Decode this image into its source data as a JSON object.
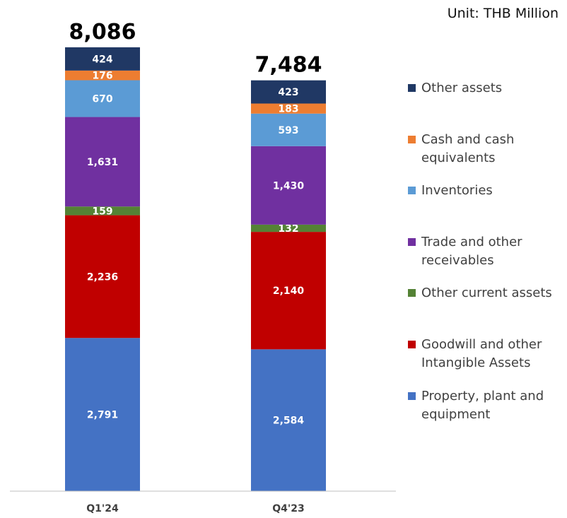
{
  "unit_label": "Unit: THB Million",
  "chart_data": {
    "type": "bar",
    "stacked": true,
    "categories": [
      "Q1'24",
      "Q4'23"
    ],
    "totals": [
      "8,086",
      "7,484"
    ],
    "series": [
      {
        "name": "Property, plant and equipment",
        "color": "#4472C4",
        "label_color": "#ffffff",
        "values": [
          2791,
          2584
        ],
        "labels": [
          "2,791",
          "2,584"
        ]
      },
      {
        "name": "Goodwill and other Intangible Assets",
        "color": "#C00000",
        "label_color": "#ffffff",
        "values": [
          2236,
          2140
        ],
        "labels": [
          "2,236",
          "2,140"
        ]
      },
      {
        "name": "Other current assets",
        "color": "#548235",
        "label_color": "#ffffff",
        "values": [
          159,
          132
        ],
        "labels": [
          "159",
          "132"
        ]
      },
      {
        "name": "Trade and other receivables",
        "color": "#7030A0",
        "label_color": "#ffffff",
        "values": [
          1631,
          1430
        ],
        "labels": [
          "1,631",
          "1,430"
        ]
      },
      {
        "name": "Inventories",
        "color": "#5B9BD5",
        "label_color": "#ffffff",
        "values": [
          670,
          593
        ],
        "labels": [
          "670",
          "593"
        ]
      },
      {
        "name": "Cash and cash equivalents",
        "color": "#ED7D31",
        "label_color": "#ffffff",
        "values": [
          176,
          183
        ],
        "labels": [
          "176",
          "183"
        ]
      },
      {
        "name": "Other assets",
        "color": "#203864",
        "label_color": "#ffffff",
        "values": [
          424,
          423
        ],
        "labels": [
          "424",
          "423"
        ]
      }
    ],
    "legend": {
      "position": "right",
      "items": [
        {
          "color": "#203864",
          "lines": [
            "Other assets"
          ]
        },
        {
          "color": "#ED7D31",
          "lines": [
            "Cash and cash",
            "equivalents"
          ]
        },
        {
          "color": "#5B9BD5",
          "lines": [
            "Inventories"
          ]
        },
        {
          "color": "#7030A0",
          "lines": [
            "Trade and other",
            "receivables"
          ]
        },
        {
          "color": "#548235",
          "lines": [
            "Other current assets"
          ]
        },
        {
          "color": "#C00000",
          "lines": [
            "Goodwill and other",
            "Intangible Assets"
          ]
        },
        {
          "color": "#4472C4",
          "lines": [
            "Property, plant and",
            "equipment"
          ]
        }
      ]
    },
    "ylim": [
      0,
      8086
    ],
    "grid": false
  }
}
